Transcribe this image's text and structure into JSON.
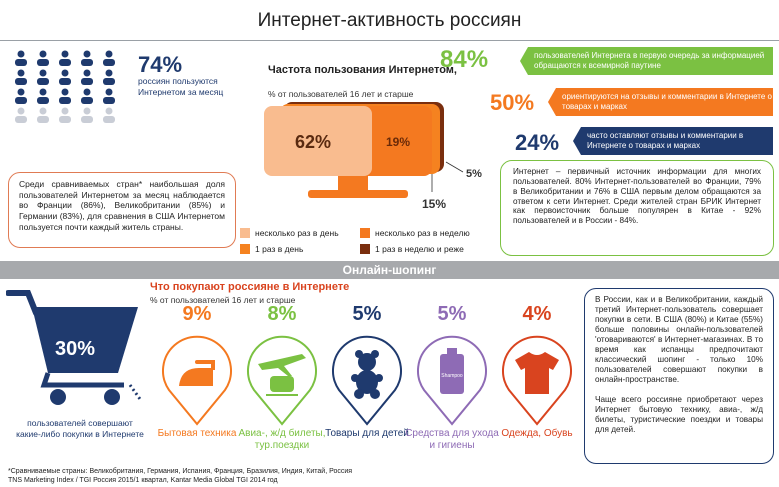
{
  "title": "Интернет-активность россиян",
  "monthly": {
    "value": "74%",
    "text": "россиян пользуются Интернетом за месяц"
  },
  "frequency": {
    "title": "Частота пользования Интернетом,",
    "subtitle": "% от пользователей 16 лет и старше",
    "slices": [
      {
        "label": "несколько раз в день",
        "value": 62,
        "text": "62%",
        "color": "#f9bc8f"
      },
      {
        "label": "несколько раз в неделю",
        "value": 19,
        "text": "19%",
        "color": "#f47920"
      },
      {
        "label": "1 раз в день",
        "value": 15,
        "text": "15%",
        "color": "#f58220"
      },
      {
        "label": "1 раз в неделю и реже",
        "value": 5,
        "text": "5%",
        "color": "#7a2e0e"
      }
    ]
  },
  "stats": [
    {
      "value": "84%",
      "text": "пользователей Интернета в первую очередь за информацией обращаются к всемирной паутине",
      "color": "#7bc142"
    },
    {
      "value": "50%",
      "text": "ориентируются на отзывы и комментарии в Интернете о товарах и марках",
      "color": "#f47920"
    },
    {
      "value": "24%",
      "text": "часто оставляют отзывы и комментарии в Интернете о товарах и марках",
      "color": "#1f3a6e"
    }
  ],
  "compare_text": "Среди сравниваемых стран* наибольшая доля пользователей Интернетом за месяц наблюдается во Франции (86%), Великобритании (85%) и Германии (83%), для сравнения в США Интернетом пользуется почти каждый житель страны.",
  "info_text": "Интернет – первичный источник информации для многих пользователей. 80% Интернет-пользователей во Франции, 79% в Великобритании и 76% в США первым делом обращаются за ответом к сети Интернет. Среди жителей стран БРИК Интернет как первоисточник больше популярен в Китае - 92% пользователей и в России - 84%.",
  "section_title": "Онлайн-шопинг",
  "cart": {
    "value": "30%",
    "text": "пользователей совершают какие-либо покупки в Интернете"
  },
  "buy": {
    "title": "Что покупают россияне в Интернете",
    "subtitle": "% от пользователей 16 лет и старше",
    "categories": [
      {
        "value": "9%",
        "label": "Бытовая техника",
        "color": "#f47920",
        "icon": "iron-icon"
      },
      {
        "value": "8%",
        "label": "Авиа-, ж/д билеты, тур.поездки",
        "color": "#7bc142",
        "icon": "train-plane-icon"
      },
      {
        "value": "5%",
        "label": "Товары для детей",
        "color": "#1f3a6e",
        "icon": "teddy-bear-icon"
      },
      {
        "value": "5%",
        "label": "Средства для ухода и гигиены",
        "color": "#8e6bb5",
        "icon": "shampoo-icon"
      },
      {
        "value": "4%",
        "label": "Одежда, Обувь",
        "color": "#d9441f",
        "icon": "tshirt-icon"
      }
    ]
  },
  "shop_text_1": "В России, как и в Великобритании, каждый третий Интернет-пользователь совершает покупки в сети. В США (80%) и Китае (55%) больше половины онлайн-пользователей 'отовариваются' в Интернет-магазинах. В то время как испанцы предпочитают классический шопинг - только 10% пользователей совершают покупки в онлайн-пространстве.",
  "shop_text_2": "Чаще всего россияне приобретают через Интернет бытовую технику, авиа-, ж/д билеты, туристические поездки и товары для детей.",
  "icon_shampoo_label": "Shampoo",
  "footnote_1": "*Сравниваемые страны: Великобритания, Германия, Испания, Франция, Бразилия, Индия, Китай, Россия",
  "footnote_2": "TNS Marketing Index / TGI Россия 2015/1 квартал, Kantar Media Global TGI 2014 год"
}
